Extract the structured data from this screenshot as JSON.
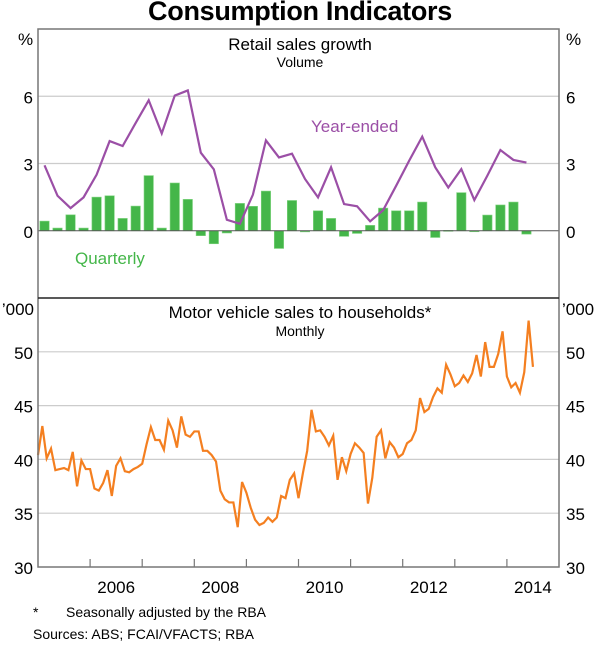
{
  "title": "Consumption Indicators",
  "footnotes": {
    "star_mark": "*",
    "star_text": "Seasonally adjusted by the RBA",
    "sources": "Sources:  ABS; FCAI/VFACTS; RBA"
  },
  "colors": {
    "year_ended": "#9B4FA6",
    "quarterly": "#44B649",
    "motor": "#F47F20",
    "grid": "#CCCCCC",
    "axis": "#777777"
  },
  "chart_data": [
    {
      "type": "bar+line",
      "title": "Retail sales growth",
      "subtitle": "Volume",
      "ylabel_left": "%",
      "ylabel_right": "%",
      "ylim": [
        -3,
        9
      ],
      "yticks": [
        0,
        3,
        6
      ],
      "xlim": [
        2005,
        2015
      ],
      "grid": true,
      "frequency": "quarterly",
      "start": "2005-Q1",
      "series": [
        {
          "name": "Year-ended",
          "kind": "line",
          "label_position": "upper-right",
          "values": [
            2.92,
            1.56,
            1.01,
            1.49,
            2.5,
            4.0,
            3.78,
            4.81,
            5.82,
            4.34,
            6.03,
            6.26,
            3.48,
            2.74,
            0.49,
            0.31,
            1.61,
            4.03,
            3.27,
            3.44,
            2.31,
            1.49,
            2.83,
            1.19,
            1.09,
            0.42,
            0.92,
            2.01,
            3.13,
            4.2,
            2.83,
            1.93,
            2.75,
            1.37,
            2.46,
            3.6,
            3.16,
            3.04
          ]
        },
        {
          "name": "Quarterly",
          "kind": "bar",
          "label_position": "lower-left",
          "values": [
            0.43,
            0.12,
            0.71,
            0.12,
            1.5,
            1.56,
            0.55,
            1.1,
            2.46,
            0.12,
            2.13,
            1.4,
            -0.22,
            -0.58,
            -0.1,
            1.22,
            1.09,
            1.77,
            -0.79,
            1.35,
            -0.05,
            0.89,
            0.55,
            -0.25,
            -0.12,
            0.24,
            1.01,
            0.89,
            0.89,
            1.28,
            -0.3,
            0.02,
            1.7,
            -0.04,
            0.7,
            1.15,
            1.28,
            -0.15
          ]
        }
      ]
    },
    {
      "type": "line",
      "title": "Motor vehicle sales to households*",
      "subtitle": "Monthly",
      "ylabel_left": "’000",
      "ylabel_right": "’000",
      "ylim": [
        30,
        55
      ],
      "yticks": [
        30,
        35,
        40,
        45,
        50
      ],
      "xlim": [
        2005,
        2015
      ],
      "xticks": [
        "2006",
        "2008",
        "2010",
        "2012",
        "2014"
      ],
      "grid": true,
      "frequency": "monthly",
      "start": "2005-01",
      "series": [
        {
          "name": "Motor vehicle sales to households",
          "values": [
            40.4,
            43.1,
            40.1,
            41.0,
            39.0,
            39.1,
            39.2,
            39.0,
            40.7,
            37.5,
            39.9,
            39.1,
            39.1,
            37.3,
            37.1,
            37.8,
            39.0,
            36.6,
            39.4,
            40.1,
            38.9,
            38.8,
            39.1,
            39.3,
            39.6,
            41.4,
            43.0,
            41.8,
            41.8,
            40.9,
            43.6,
            42.7,
            41.1,
            44.0,
            42.3,
            42.1,
            42.6,
            42.6,
            40.8,
            40.8,
            40.4,
            39.8,
            37.1,
            36.3,
            36.0,
            36.0,
            33.7,
            37.9,
            36.9,
            35.5,
            34.4,
            33.9,
            34.1,
            34.6,
            34.2,
            34.6,
            36.6,
            36.4,
            38.1,
            38.7,
            36.4,
            38.7,
            40.8,
            44.6,
            42.6,
            42.7,
            42.1,
            41.3,
            42.2,
            38.1,
            40.2,
            38.9,
            40.5,
            41.5,
            41.1,
            40.6,
            35.9,
            38.3,
            42.1,
            42.7,
            40.1,
            41.6,
            41.1,
            40.2,
            40.5,
            41.5,
            41.8,
            42.7,
            45.7,
            44.4,
            44.7,
            45.8,
            46.6,
            46.2,
            48.8,
            47.9,
            46.8,
            47.1,
            47.8,
            47.2,
            48.0,
            49.7,
            47.7,
            50.9,
            48.6,
            48.6,
            49.8,
            51.9,
            47.7,
            46.7,
            47.1,
            46.2,
            48.1,
            52.9,
            48.6
          ]
        }
      ]
    }
  ]
}
